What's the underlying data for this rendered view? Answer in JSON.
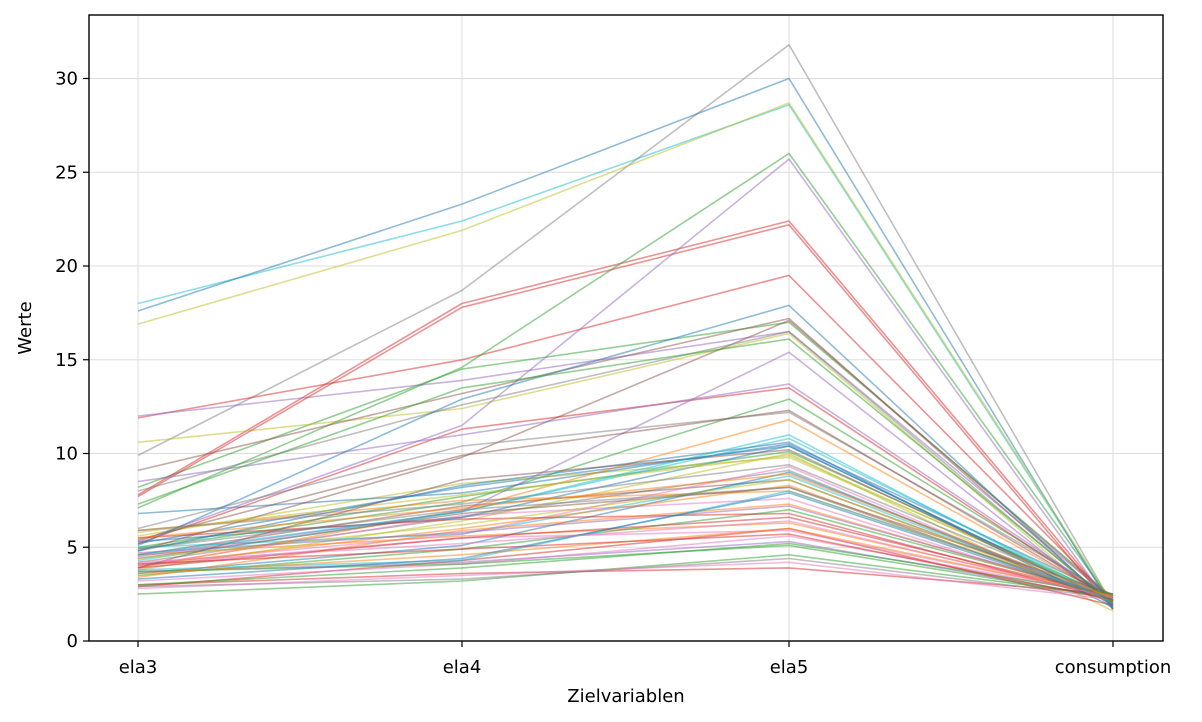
{
  "chart_data": {
    "type": "line",
    "title": "",
    "xlabel": "Zielvariablen",
    "ylabel": "Werte",
    "categories": [
      "ela3",
      "ela4",
      "ela5",
      "consumption"
    ],
    "ylim": [
      0,
      33.4
    ],
    "yticks": [
      0,
      5,
      10,
      15,
      20,
      25,
      30
    ],
    "grid": true,
    "legend": "none",
    "series": [
      {
        "color": "#ff7f0e",
        "values": [
          4.6,
          5.6,
          6.3,
          2.4
        ]
      },
      {
        "color": "#7f7f7f",
        "values": [
          4.2,
          6.6,
          9.1,
          2.0
        ]
      },
      {
        "color": "#bcbd22",
        "values": [
          3.8,
          6.4,
          10.0,
          1.6
        ]
      },
      {
        "color": "#d62728",
        "values": [
          2.9,
          4.3,
          6.0,
          1.9
        ]
      },
      {
        "color": "#2ca02c",
        "values": [
          8.2,
          14.5,
          17.0,
          2.3
        ]
      },
      {
        "color": "#7f7f7f",
        "values": [
          9.9,
          18.7,
          31.8,
          1.9
        ]
      },
      {
        "color": "#2ca02c",
        "values": [
          5.0,
          7.7,
          10.1,
          2.3
        ]
      },
      {
        "color": "#d62728",
        "values": [
          7.8,
          18.0,
          22.4,
          1.9
        ]
      },
      {
        "color": "#e377c2",
        "values": [
          4.0,
          6.7,
          7.6,
          2.2
        ]
      },
      {
        "color": "#1f77b4",
        "values": [
          5.3,
          6.6,
          10.4,
          2.1
        ]
      },
      {
        "color": "#2ca02c",
        "values": [
          4.9,
          7.4,
          12.9,
          2.3
        ]
      },
      {
        "color": "#bcbd22",
        "values": [
          10.6,
          12.4,
          16.4,
          1.7
        ]
      },
      {
        "color": "#17becf",
        "values": [
          5.0,
          5.7,
          8.8,
          2.2
        ]
      },
      {
        "color": "#d62728",
        "values": [
          11.9,
          15.0,
          19.5,
          2.1
        ]
      },
      {
        "color": "#8c564b",
        "values": [
          4.6,
          7.2,
          8.6,
          2.2
        ]
      },
      {
        "color": "#2ca02c",
        "values": [
          2.5,
          3.2,
          4.6,
          2.4
        ]
      },
      {
        "color": "#ff7f0e",
        "values": [
          5.9,
          7.5,
          8.0,
          2.3
        ]
      },
      {
        "color": "#1f77b4",
        "values": [
          5.2,
          8.2,
          10.4,
          2.1
        ]
      },
      {
        "color": "#9467bd",
        "values": [
          12.0,
          13.9,
          16.5,
          2.2
        ]
      },
      {
        "color": "#bcbd22",
        "values": [
          5.6,
          8.4,
          9.8,
          2.3
        ]
      },
      {
        "color": "#17becf",
        "values": [
          18.0,
          22.4,
          28.6,
          1.9
        ]
      },
      {
        "color": "#1f77b4",
        "values": [
          6.8,
          7.9,
          10.5,
          2.4
        ]
      },
      {
        "color": "#8c564b",
        "values": [
          4.8,
          9.8,
          17.1,
          2.2
        ]
      },
      {
        "color": "#d62728",
        "values": [
          7.7,
          17.8,
          22.2,
          1.7
        ]
      },
      {
        "color": "#9467bd",
        "values": [
          5.3,
          11.5,
          25.7,
          1.7
        ]
      },
      {
        "color": "#e377c2",
        "values": [
          4.1,
          5.7,
          9.3,
          2.0
        ]
      },
      {
        "color": "#d62728",
        "values": [
          3.0,
          3.6,
          3.9,
          2.5
        ]
      },
      {
        "color": "#7f7f7f",
        "values": [
          8.0,
          12.6,
          16.5,
          1.9
        ]
      },
      {
        "color": "#ff7f0e",
        "values": [
          3.9,
          7.0,
          11.8,
          2.2
        ]
      },
      {
        "color": "#9467bd",
        "values": [
          3.7,
          4.2,
          5.3,
          2.3
        ]
      },
      {
        "color": "#2ca02c",
        "values": [
          7.1,
          14.6,
          26.0,
          2.0
        ]
      },
      {
        "color": "#1f77b4",
        "values": [
          17.6,
          23.3,
          30.0,
          1.7
        ]
      },
      {
        "color": "#bcbd22",
        "values": [
          16.9,
          21.9,
          28.7,
          2.0
        ]
      },
      {
        "color": "#8c564b",
        "values": [
          9.1,
          13.2,
          17.2,
          1.9
        ]
      },
      {
        "color": "#d62728",
        "values": [
          5.2,
          11.3,
          13.5,
          2.1
        ]
      },
      {
        "color": "#7f7f7f",
        "values": [
          6.0,
          10.4,
          12.2,
          2.4
        ]
      },
      {
        "color": "#2ca02c",
        "values": [
          3.5,
          4.9,
          7.0,
          2.4
        ]
      },
      {
        "color": "#e377c2",
        "values": [
          3.2,
          4.1,
          5.6,
          2.4
        ]
      },
      {
        "color": "#1f77b4",
        "values": [
          3.6,
          5.1,
          9.0,
          2.2
        ]
      },
      {
        "color": "#9467bd",
        "values": [
          8.5,
          11.0,
          13.7,
          2.2
        ]
      },
      {
        "color": "#ff7f0e",
        "values": [
          4.0,
          6.0,
          8.3,
          2.1
        ]
      },
      {
        "color": "#17becf",
        "values": [
          4.3,
          6.9,
          10.8,
          2.2
        ]
      },
      {
        "color": "#8c564b",
        "values": [
          4.4,
          6.8,
          8.2,
          2.5
        ]
      },
      {
        "color": "#bcbd22",
        "values": [
          5.8,
          7.8,
          9.9,
          2.2
        ]
      },
      {
        "color": "#d62728",
        "values": [
          5.5,
          6.5,
          6.8,
          2.2
        ]
      },
      {
        "color": "#2ca02c",
        "values": [
          3.7,
          4.1,
          5.1,
          2.3
        ]
      },
      {
        "color": "#7f7f7f",
        "values": [
          2.9,
          3.3,
          4.4,
          2.3
        ]
      },
      {
        "color": "#e377c2",
        "values": [
          4.0,
          5.5,
          5.9,
          2.4
        ]
      },
      {
        "color": "#1f77b4",
        "values": [
          4.8,
          8.3,
          10.6,
          1.8
        ]
      },
      {
        "color": "#9467bd",
        "values": [
          4.5,
          6.9,
          15.4,
          1.8
        ]
      },
      {
        "color": "#ff7f0e",
        "values": [
          3.4,
          5.9,
          7.3,
          2.3
        ]
      },
      {
        "color": "#8c564b",
        "values": [
          5.4,
          9.9,
          12.3,
          2.2
        ]
      },
      {
        "color": "#17becf",
        "values": [
          3.8,
          4.3,
          8.0,
          2.3
        ]
      },
      {
        "color": "#d62728",
        "values": [
          3.9,
          5.5,
          6.6,
          2.4
        ]
      },
      {
        "color": "#e377c2",
        "values": [
          2.8,
          3.5,
          4.2,
          2.2
        ]
      },
      {
        "color": "#1f77b4",
        "values": [
          5.1,
          12.9,
          17.9,
          1.8
        ]
      },
      {
        "color": "#bcbd22",
        "values": [
          4.4,
          6.2,
          8.6,
          2.1
        ]
      },
      {
        "color": "#7f7f7f",
        "values": [
          5.9,
          7.3,
          9.4,
          2.3
        ]
      },
      {
        "color": "#9467bd",
        "values": [
          4.7,
          5.8,
          7.2,
          2.4
        ]
      },
      {
        "color": "#2ca02c",
        "values": [
          3.0,
          3.9,
          5.2,
          2.5
        ]
      },
      {
        "color": "#ff7f0e",
        "values": [
          3.6,
          4.6,
          6.0,
          2.4
        ]
      },
      {
        "color": "#d62728",
        "values": [
          4.1,
          4.9,
          5.7,
          2.2
        ]
      },
      {
        "color": "#1f77b4",
        "values": [
          3.3,
          4.4,
          7.9,
          2.2
        ]
      },
      {
        "color": "#8c564b",
        "values": [
          3.9,
          8.6,
          10.2,
          2.1
        ]
      },
      {
        "color": "#17becf",
        "values": [
          4.6,
          6.9,
          11.0,
          2.0
        ]
      },
      {
        "color": "#e377c2",
        "values": [
          4.2,
          5.2,
          6.4,
          2.3
        ]
      },
      {
        "color": "#2ca02c",
        "values": [
          7.3,
          13.5,
          16.1,
          2.0
        ]
      },
      {
        "color": "#7f7f7f",
        "values": [
          4.9,
          7.0,
          8.2,
          2.2
        ]
      },
      {
        "color": "#ff7f0e",
        "values": [
          5.5,
          7.1,
          8.9,
          2.3
        ]
      }
    ]
  }
}
